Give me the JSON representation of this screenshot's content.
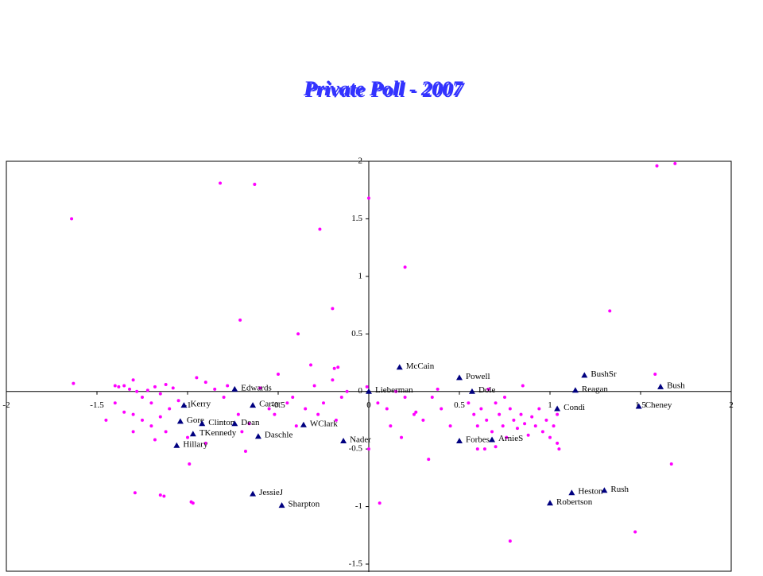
{
  "chart_data": {
    "type": "scatter",
    "title": "Private Poll - 2007",
    "xlim": [
      -2,
      2
    ],
    "ylim": [
      -1.5,
      2
    ],
    "xticks": [
      -2,
      -1.5,
      -1,
      -0.5,
      0,
      0.5,
      1,
      1.5,
      2
    ],
    "yticks": [
      -1.5,
      -1,
      -0.5,
      0,
      0.5,
      1,
      1.5,
      2
    ],
    "series": [
      {
        "color": "#ff00ff",
        "marker": "dot",
        "x": [
          -1.64,
          -1.63,
          -0.82,
          -0.63,
          0.0,
          -0.27,
          0.2,
          -0.2,
          -0.71,
          -0.39,
          1.33,
          1.59,
          1.69,
          1.58,
          1.67,
          1.47,
          0.78,
          0.06,
          0.33,
          -1.29,
          -1.15,
          -1.13,
          -0.98,
          -0.97,
          -0.99,
          -0.68,
          -0.32,
          -0.17,
          -0.19,
          -0.01,
          -1.4,
          -1.38,
          -1.35,
          -1.32,
          -1.3,
          -1.28,
          -1.25,
          -1.22,
          -1.2,
          -1.18,
          -1.15,
          -1.12,
          -1.1,
          -1.08,
          -1.05,
          -1.3,
          -1.25,
          -1.2,
          -1.15,
          -1.12,
          -1.35,
          -1.4,
          -1.45,
          -0.95,
          -0.9,
          -0.85,
          -0.8,
          -0.78,
          -0.72,
          -0.7,
          -0.6,
          -0.55,
          -0.52,
          -0.5,
          -0.45,
          -0.42,
          -0.4,
          -0.35,
          -0.3,
          -0.28,
          -0.25,
          -0.2,
          -0.18,
          -0.15,
          -0.12,
          -1.0,
          -0.9,
          -1.3,
          -1.18,
          -0.66,
          0.05,
          0.1,
          0.15,
          0.2,
          0.25,
          0.3,
          0.35,
          0.4,
          0.45,
          0.12,
          0.18,
          0.0,
          0.26,
          0.38,
          0.55,
          0.58,
          0.6,
          0.62,
          0.65,
          0.68,
          0.7,
          0.72,
          0.74,
          0.76,
          0.78,
          0.8,
          0.82,
          0.84,
          0.86,
          0.88,
          0.9,
          0.92,
          0.94,
          0.96,
          0.98,
          1.0,
          1.02,
          1.04,
          1.04,
          0.6,
          0.64,
          0.7,
          0.66,
          0.85,
          1.05,
          0.75
        ],
        "values": [
          1.5,
          0.07,
          1.81,
          1.8,
          1.68,
          1.41,
          1.08,
          0.72,
          0.62,
          0.5,
          0.7,
          1.96,
          1.98,
          0.15,
          -0.63,
          -1.22,
          -1.3,
          -0.97,
          -0.59,
          -0.88,
          -0.9,
          -0.91,
          -0.96,
          -0.97,
          -0.63,
          -0.52,
          0.23,
          0.21,
          0.2,
          0.04,
          0.05,
          0.04,
          0.05,
          0.02,
          0.1,
          0.0,
          -0.05,
          0.01,
          -0.1,
          0.04,
          -0.02,
          0.06,
          -0.15,
          0.03,
          -0.08,
          -0.2,
          -0.25,
          -0.3,
          -0.22,
          -0.35,
          -0.18,
          -0.1,
          -0.25,
          0.12,
          0.08,
          0.02,
          -0.05,
          0.05,
          -0.2,
          -0.35,
          0.03,
          -0.15,
          -0.2,
          0.15,
          -0.1,
          -0.05,
          -0.3,
          -0.15,
          0.05,
          -0.2,
          -0.1,
          0.1,
          -0.25,
          -0.05,
          0.0,
          -0.4,
          -0.45,
          -0.35,
          -0.42,
          -0.28,
          -0.1,
          -0.15,
          0.0,
          -0.05,
          -0.2,
          -0.25,
          -0.05,
          -0.15,
          -0.3,
          -0.3,
          -0.4,
          -0.5,
          -0.18,
          0.02,
          -0.1,
          -0.2,
          -0.3,
          -0.15,
          -0.25,
          -0.35,
          -0.1,
          -0.2,
          -0.3,
          -0.4,
          -0.15,
          -0.25,
          -0.32,
          -0.2,
          -0.28,
          -0.38,
          -0.22,
          -0.3,
          -0.15,
          -0.35,
          -0.25,
          -0.4,
          -0.3,
          -0.45,
          -0.2,
          -0.5,
          -0.5,
          -0.48,
          0.02,
          0.05,
          -0.5,
          -0.05
        ]
      },
      {
        "color": "#000080",
        "marker": "triangle",
        "labels": [
          "McCain",
          "Powell",
          "BushSr",
          "Bush",
          "Reagan",
          "Dole",
          "Lieberman",
          "Cheney",
          "Condi",
          "Edwards",
          "Kerry",
          "Carter",
          "Gore",
          "Clinton",
          "Dean",
          "WClark",
          "TKennedy",
          "Daschle",
          "Hillary",
          "Nader",
          "Forbes",
          "ArnieS",
          "JessieJ",
          "Sharpton",
          "Heston",
          "Rush",
          "Robertson"
        ],
        "x": [
          0.17,
          0.5,
          1.19,
          1.61,
          1.14,
          0.57,
          0.0,
          1.49,
          1.04,
          -0.74,
          -1.02,
          -0.64,
          -1.04,
          -0.92,
          -0.74,
          -0.36,
          -0.97,
          -0.61,
          -1.06,
          -0.14,
          0.5,
          0.68,
          -0.64,
          -0.48,
          1.12,
          1.3,
          1.0
        ],
        "values": [
          0.21,
          0.12,
          0.14,
          0.04,
          0.01,
          0.0,
          0.0,
          -0.13,
          -0.15,
          0.02,
          -0.12,
          -0.12,
          -0.26,
          -0.28,
          -0.28,
          -0.29,
          -0.37,
          -0.39,
          -0.47,
          -0.43,
          -0.43,
          -0.42,
          -0.89,
          -0.99,
          -0.88,
          -0.86,
          -0.97
        ]
      }
    ]
  }
}
